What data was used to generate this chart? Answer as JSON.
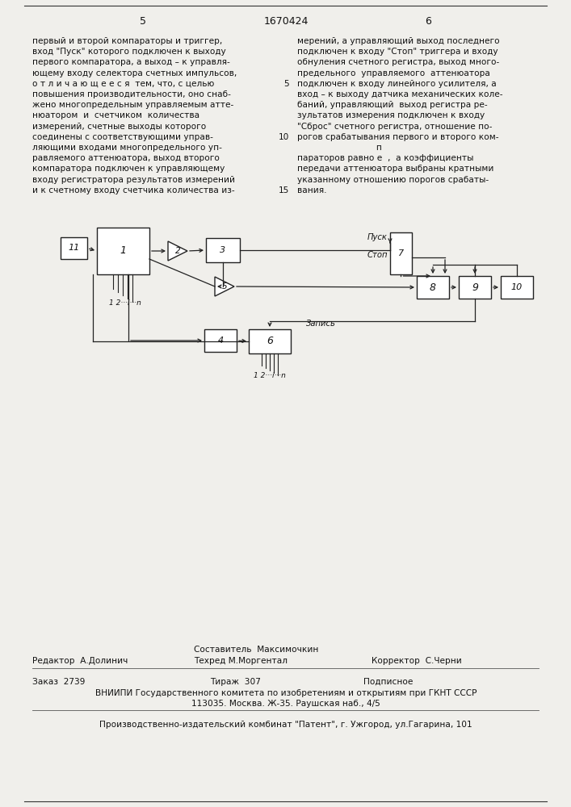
{
  "bg_color": "#f0efeb",
  "page_number_left": "5",
  "page_number_center": "1670424",
  "page_number_right": "6",
  "text_left_lines": [
    "первый и второй компараторы и триггер,",
    "вход \"Пуск\" которого подключен к выходу",
    "первого компаратора, а выход – к управля-",
    "ющему входу селектора счетных импульсов,",
    "о т л и ч а ю щ е е с я  тем, что, с целью",
    "повышения производительности, оно снаб-",
    "жено многопредельным управляемым атте-",
    "нюатором  и  счетчиком  количества",
    "измерений, счетные выходы которого",
    "соединены с соответствующими управ-",
    "ляющими входами многопредельного уп-",
    "равляемого аттенюатора, выход второго",
    "компаратора подключен к управляющему",
    "входу регистратора результатов измерений",
    "и к счетному входу счетчика количества из-"
  ],
  "line_number_5": "5",
  "line_number_10": "10",
  "line_number_15": "15",
  "text_right_lines": [
    "мерений, а управляющий выход последнего",
    "подключен к входу \"Стоп\" триггера и входу",
    "обнуления счетного регистра, выход много-",
    "предельного  управляемого  аттенюатора",
    "подключен к входу линейного усилителя, а",
    "вход – к выходу датчика механических коле-",
    "баний, управляющий  выход регистра ре-",
    "зультатов измерения подключен к входу",
    "\"Сброс\" счетного регистра, отношение по-",
    "рогов срабатывания первого и второго ком-",
    "                             п",
    "параторов равно е  ,  а коэффициенты",
    "передачи аттенюатора выбраны кратными",
    "указанному отношению порогов срабаты-",
    "вания."
  ],
  "editor_label": "Редактор  А.Долинич",
  "composer_label": "Составитель  Максимочкин",
  "techred_label": "Техред М.Моргентал",
  "corrector_label": "Корректор  С.Черни",
  "order_label": "Заказ  2739",
  "tirazh_label": "Тираж  307",
  "podpisnoe_label": "Подписное",
  "vniipи_label": "ВНИИПИ Государственного комитета по изобретениям и открытиям при ГКНТ СССР",
  "address_label": "113035. Москва. Ж-35. Раушская наб., 4/5",
  "publisher_label": "Производственно-издательский комбинат \"Патент\", г. Ужгород, ул.Гагарина, 101"
}
